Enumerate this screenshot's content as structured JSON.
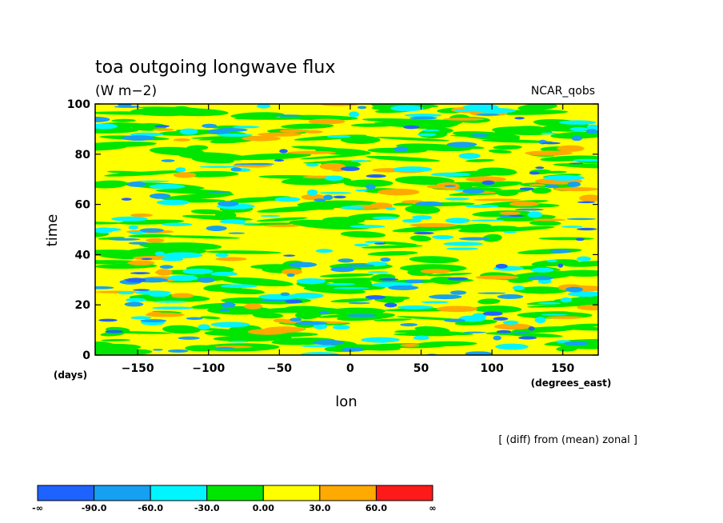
{
  "chart_data": {
    "type": "heatmap",
    "title": "toa outgoing longwave flux",
    "units": "(W m−2)",
    "source_label": "NCAR_qobs",
    "operation_note": "[ (diff) from (mean) zonal ]",
    "xlabel": "lon",
    "x_unit_label": "(degrees_east)",
    "ylabel": "time",
    "y_unit_label": "(days)",
    "xlim": [
      -180,
      175
    ],
    "ylim": [
      0,
      100
    ],
    "x_ticks": [
      -150,
      -100,
      -50,
      0,
      50,
      100,
      150
    ],
    "x_tick_labels": [
      "−150",
      "−100",
      "−50",
      "0",
      "50",
      "100",
      "150"
    ],
    "y_ticks": [
      0,
      20,
      40,
      60,
      80,
      100
    ],
    "y_tick_labels": [
      "0",
      "20",
      "40",
      "60",
      "80",
      "100"
    ],
    "colorbar": {
      "levels": [
        "-∞",
        "-90.0",
        "-60.0",
        "-30.0",
        "0.00",
        "30.0",
        "60.0",
        "∞"
      ],
      "colors": [
        "#1e63ff",
        "#15a0f2",
        "#00f5ff",
        "#00e600",
        "#ffff00",
        "#ffaa00",
        "#ff1a1a"
      ]
    },
    "field_note": "Hovmoller field dominated by 0 to 30 anomaly (yellow) with streaks of negative anomalies (green, cyan, blue) and scattered positive (orange) patches"
  }
}
